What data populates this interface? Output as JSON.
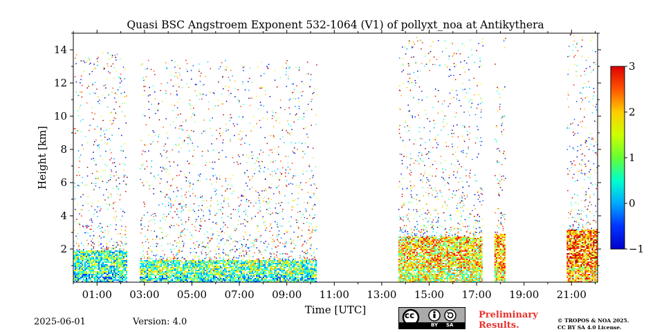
{
  "chart_data": {
    "type": "heatmap",
    "title": "Quasi BSC Angstroem Exponent 532-1064 (V1) of pollyxt_noa at Antikythera",
    "xlabel": "Time [UTC]",
    "ylabel": "Height [km]",
    "xlim_hours": [
      0.0,
      22.1
    ],
    "ylim_km": [
      0.0,
      15.0
    ],
    "x_tick_labels": [
      "01:00",
      "03:00",
      "05:00",
      "07:00",
      "09:00",
      "11:00",
      "13:00",
      "15:00",
      "17:00",
      "19:00",
      "21:00"
    ],
    "x_tick_hours": [
      1,
      3,
      5,
      7,
      9,
      11,
      13,
      15,
      17,
      19,
      21
    ],
    "y_ticks": [
      2,
      4,
      6,
      8,
      10,
      12,
      14
    ],
    "colorbar": {
      "min": -1,
      "max": 3,
      "ticks": [
        -1,
        0,
        1,
        2,
        3
      ],
      "tick_labels": [
        "−1",
        "0",
        "1",
        "2",
        "3"
      ],
      "colormap": "jet"
    },
    "measurement_periods": [
      {
        "start_hour": 0.0,
        "end_hour": 2.25,
        "dense_top_km": 2.0,
        "mean_value": 0.8
      },
      {
        "start_hour": 2.8,
        "end_hour": 10.25,
        "dense_top_km": 1.4,
        "mean_value": 0.9
      },
      {
        "start_hour": 13.7,
        "end_hour": 17.25,
        "dense_top_km": 2.8,
        "mean_value": 1.6
      },
      {
        "start_hour": 17.75,
        "end_hour": 18.2,
        "dense_top_km": 3.0,
        "mean_value": 1.8
      },
      {
        "start_hour": 20.8,
        "end_hour": 22.1,
        "dense_top_km": 3.2,
        "mean_value": 2.0
      }
    ],
    "grid": false,
    "legend": "colorbar-right"
  },
  "footer": {
    "date": "2025-06-01",
    "version": "Version: 4.0",
    "preliminary_line1": "Preliminary",
    "preliminary_line2": "Results.",
    "license_line1": "© TROPOS & NOA 2025.",
    "license_line2": "CC BY SA 4.0 License.",
    "cc_badge": {
      "left": "cc",
      "by": "BY",
      "sa": "SA"
    }
  }
}
